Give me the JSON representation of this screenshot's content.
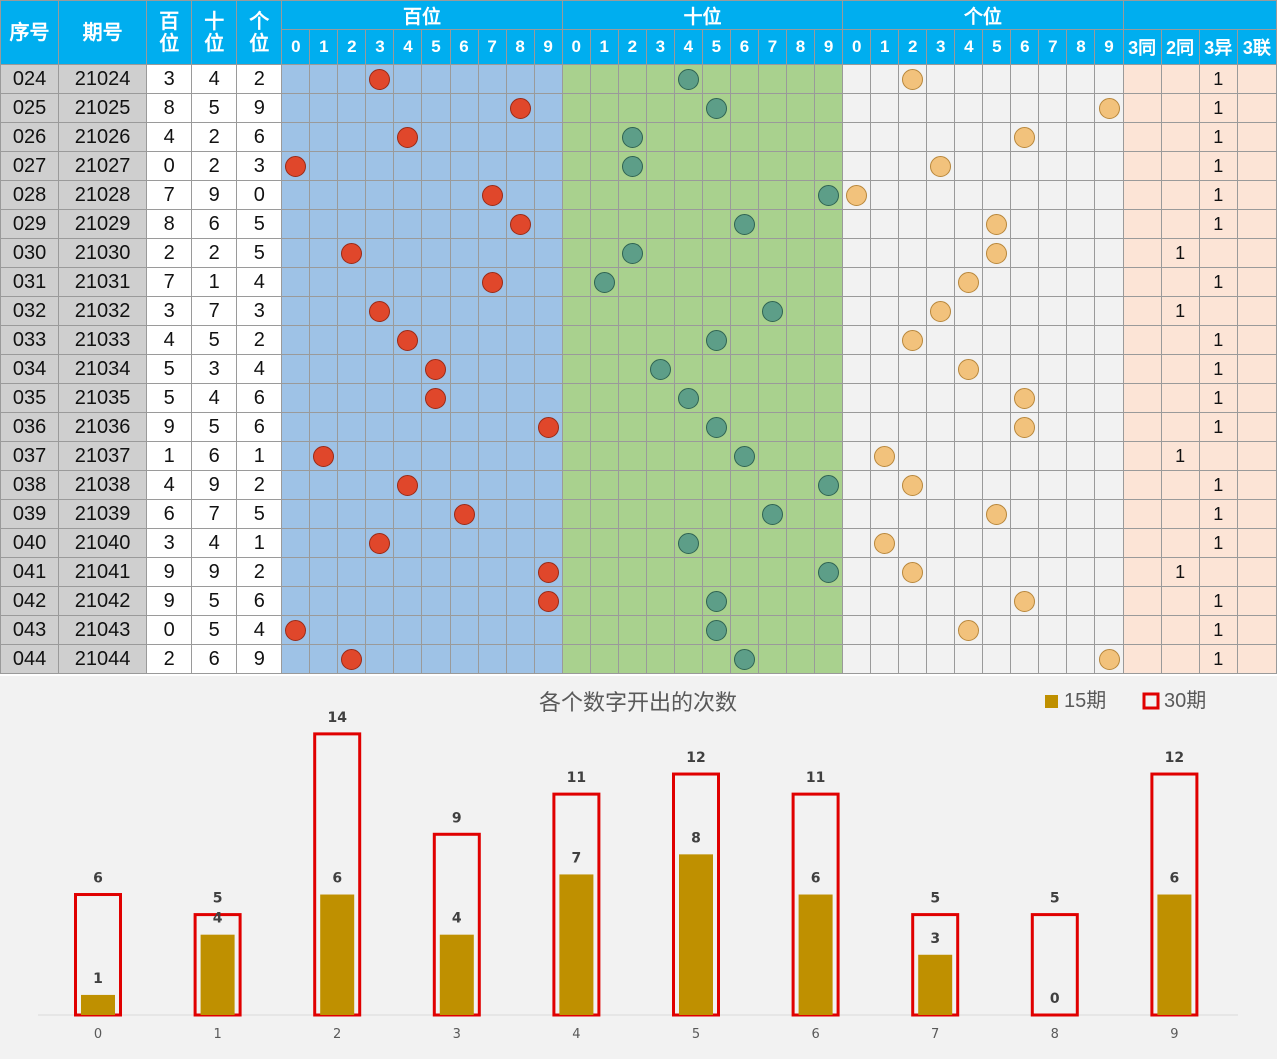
{
  "table": {
    "headers": {
      "seq": "序号",
      "issue": "期号",
      "bai_line1": "百",
      "bai_line2": "位",
      "shi_line1": "十",
      "shi_line2": "位",
      "ge_line1": "个",
      "ge_line2": "位",
      "group_bai": "百位",
      "group_shi": "十位",
      "group_ge": "个位",
      "digits": [
        "0",
        "1",
        "2",
        "3",
        "4",
        "5",
        "6",
        "7",
        "8",
        "9"
      ],
      "summary": [
        "3同",
        "2同",
        "3异",
        "3联"
      ]
    },
    "rows": [
      {
        "seq": "024",
        "issue": "21024",
        "b": 3,
        "s": 4,
        "g": 2,
        "summary": [
          "",
          "",
          "1",
          ""
        ]
      },
      {
        "seq": "025",
        "issue": "21025",
        "b": 8,
        "s": 5,
        "g": 9,
        "summary": [
          "",
          "",
          "1",
          ""
        ]
      },
      {
        "seq": "026",
        "issue": "21026",
        "b": 4,
        "s": 2,
        "g": 6,
        "summary": [
          "",
          "",
          "1",
          ""
        ]
      },
      {
        "seq": "027",
        "issue": "21027",
        "b": 0,
        "s": 2,
        "g": 3,
        "summary": [
          "",
          "",
          "1",
          ""
        ]
      },
      {
        "seq": "028",
        "issue": "21028",
        "b": 7,
        "s": 9,
        "g": 0,
        "summary": [
          "",
          "",
          "1",
          ""
        ]
      },
      {
        "seq": "029",
        "issue": "21029",
        "b": 8,
        "s": 6,
        "g": 5,
        "summary": [
          "",
          "",
          "1",
          ""
        ]
      },
      {
        "seq": "030",
        "issue": "21030",
        "b": 2,
        "s": 2,
        "g": 5,
        "summary": [
          "",
          "1",
          "",
          ""
        ]
      },
      {
        "seq": "031",
        "issue": "21031",
        "b": 7,
        "s": 1,
        "g": 4,
        "summary": [
          "",
          "",
          "1",
          ""
        ]
      },
      {
        "seq": "032",
        "issue": "21032",
        "b": 3,
        "s": 7,
        "g": 3,
        "summary": [
          "",
          "1",
          "",
          ""
        ]
      },
      {
        "seq": "033",
        "issue": "21033",
        "b": 4,
        "s": 5,
        "g": 2,
        "summary": [
          "",
          "",
          "1",
          ""
        ]
      },
      {
        "seq": "034",
        "issue": "21034",
        "b": 5,
        "s": 3,
        "g": 4,
        "summary": [
          "",
          "",
          "1",
          ""
        ]
      },
      {
        "seq": "035",
        "issue": "21035",
        "b": 5,
        "s": 4,
        "g": 6,
        "summary": [
          "",
          "",
          "1",
          ""
        ]
      },
      {
        "seq": "036",
        "issue": "21036",
        "b": 9,
        "s": 5,
        "g": 6,
        "summary": [
          "",
          "",
          "1",
          ""
        ]
      },
      {
        "seq": "037",
        "issue": "21037",
        "b": 1,
        "s": 6,
        "g": 1,
        "summary": [
          "",
          "1",
          "",
          ""
        ]
      },
      {
        "seq": "038",
        "issue": "21038",
        "b": 4,
        "s": 9,
        "g": 2,
        "summary": [
          "",
          "",
          "1",
          ""
        ]
      },
      {
        "seq": "039",
        "issue": "21039",
        "b": 6,
        "s": 7,
        "g": 5,
        "summary": [
          "",
          "",
          "1",
          ""
        ]
      },
      {
        "seq": "040",
        "issue": "21040",
        "b": 3,
        "s": 4,
        "g": 1,
        "summary": [
          "",
          "",
          "1",
          ""
        ]
      },
      {
        "seq": "041",
        "issue": "21041",
        "b": 9,
        "s": 9,
        "g": 2,
        "summary": [
          "",
          "1",
          "",
          ""
        ]
      },
      {
        "seq": "042",
        "issue": "21042",
        "b": 9,
        "s": 5,
        "g": 6,
        "summary": [
          "",
          "",
          "1",
          ""
        ]
      },
      {
        "seq": "043",
        "issue": "21043",
        "b": 0,
        "s": 5,
        "g": 4,
        "summary": [
          "",
          "",
          "1",
          ""
        ]
      },
      {
        "seq": "044",
        "issue": "21044",
        "b": 2,
        "s": 6,
        "g": 9,
        "summary": [
          "",
          "",
          "1",
          ""
        ]
      }
    ],
    "colors": {
      "header_bg": "#00aeef",
      "bai_bg": "#9ec2e6",
      "shi_bg": "#a9d18e",
      "ge_bg": "#f2f2f2",
      "summary_bg": "#fce4d6",
      "bai_ball": "#e0472b",
      "shi_ball": "#5d9e88",
      "ge_ball": "#f2c27c"
    }
  },
  "chart_data": {
    "type": "bar",
    "title": "各个数字开出的次数",
    "categories": [
      "0",
      "1",
      "2",
      "3",
      "4",
      "5",
      "6",
      "7",
      "8",
      "9"
    ],
    "series": [
      {
        "name": "15期",
        "values": [
          1,
          4,
          6,
          4,
          7,
          8,
          6,
          3,
          0,
          6
        ],
        "color": "#bf9000",
        "style": "filled"
      },
      {
        "name": "30期",
        "values": [
          6,
          5,
          14,
          9,
          11,
          12,
          11,
          5,
          5,
          12
        ],
        "color": "#e00000",
        "style": "outline"
      }
    ],
    "ylim": [
      0,
      14
    ],
    "legend": "top-right",
    "grid": false,
    "xlabel": "",
    "ylabel": ""
  }
}
